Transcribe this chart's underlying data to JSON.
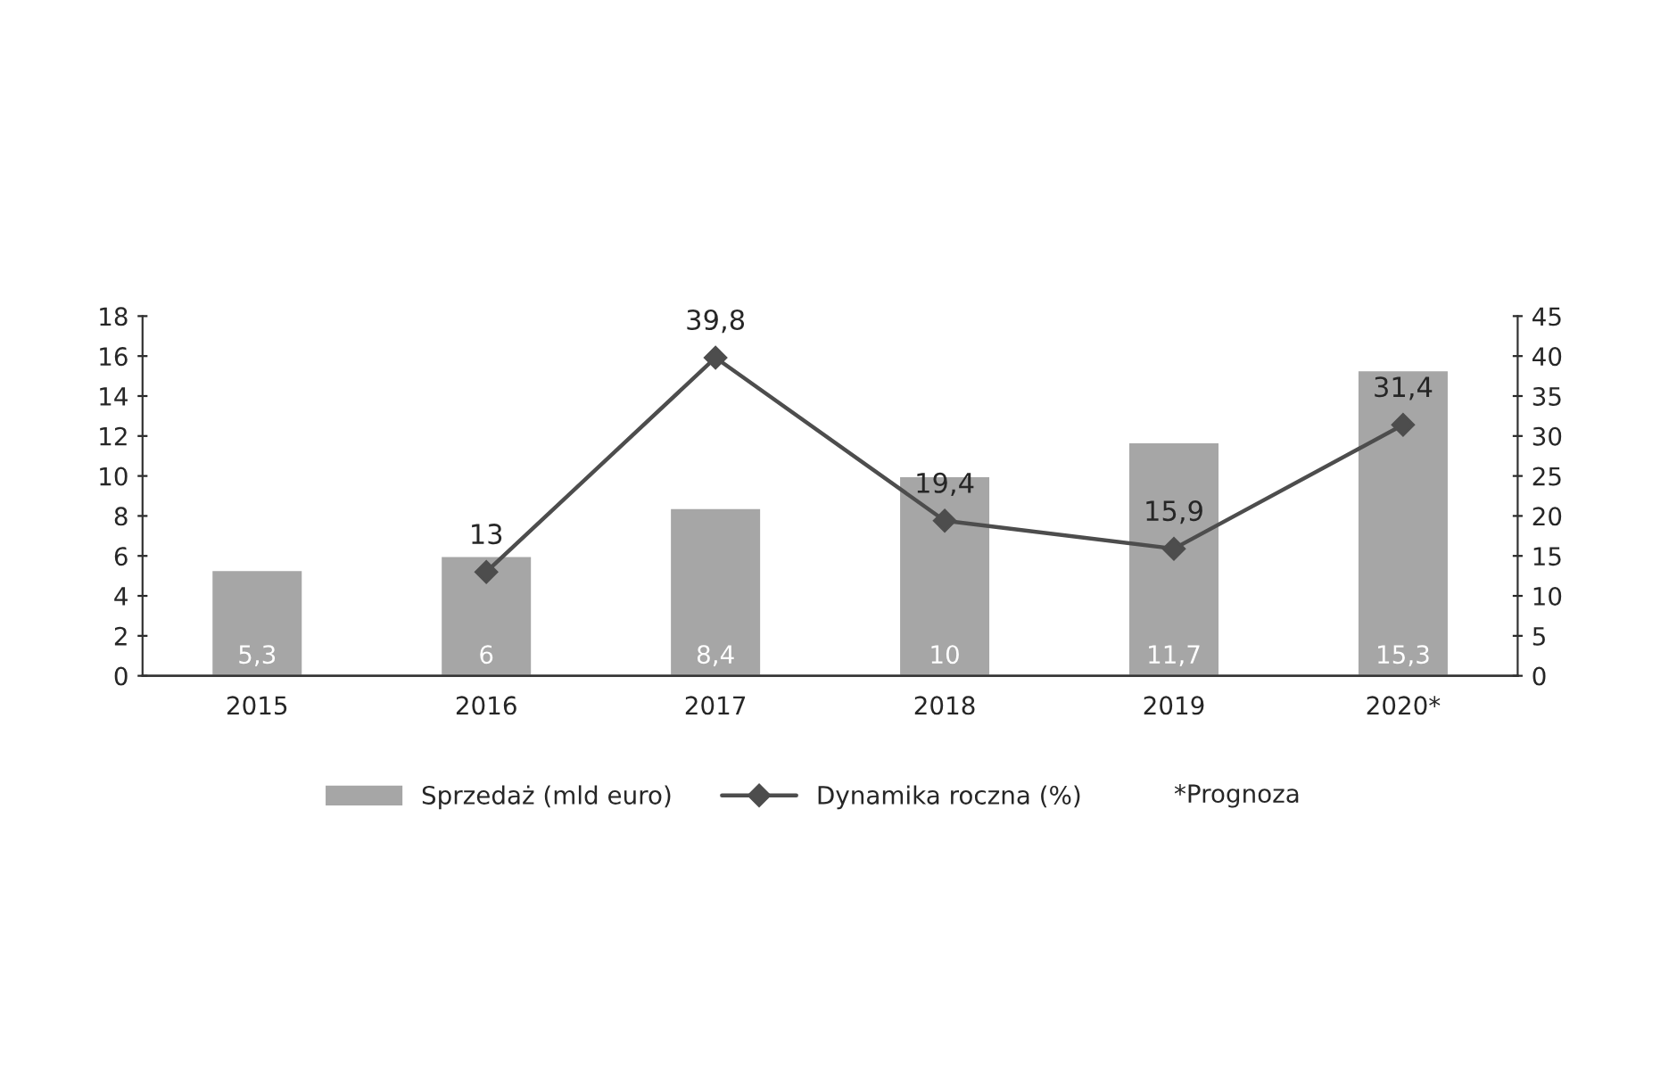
{
  "chart_data": {
    "type": "bar",
    "categories": [
      "2015",
      "2016",
      "2017",
      "2018",
      "2019",
      "2020*"
    ],
    "series": [
      {
        "name": "Sprzedaż (mld euro)",
        "color": "#a6a6a6",
        "values": [
          5.3,
          6,
          8.4,
          10,
          11.7,
          15.3
        ],
        "value_labels": [
          "5,3",
          "6",
          "8,4",
          "10",
          "11,7",
          "15,3"
        ]
      },
      {
        "name": "Dynamika roczna (%)",
        "type": "line",
        "axis": "y2",
        "color": "#4d4d4d",
        "marker": "diamond",
        "values": [
          null,
          13,
          39.8,
          19.4,
          15.9,
          31.4
        ],
        "value_labels": [
          null,
          "13",
          "39,8",
          "19,4",
          "15,9",
          "31,4"
        ]
      }
    ],
    "ylim": [
      0,
      18
    ],
    "yticks": [
      0,
      2,
      4,
      6,
      8,
      10,
      12,
      14,
      16,
      18
    ],
    "y2lim": [
      0,
      45
    ],
    "y2ticks": [
      0,
      5,
      10,
      15,
      20,
      25,
      30,
      35,
      40,
      45
    ],
    "grid": false,
    "legend": "bottom",
    "annotations": [
      "*Prognoza"
    ]
  }
}
